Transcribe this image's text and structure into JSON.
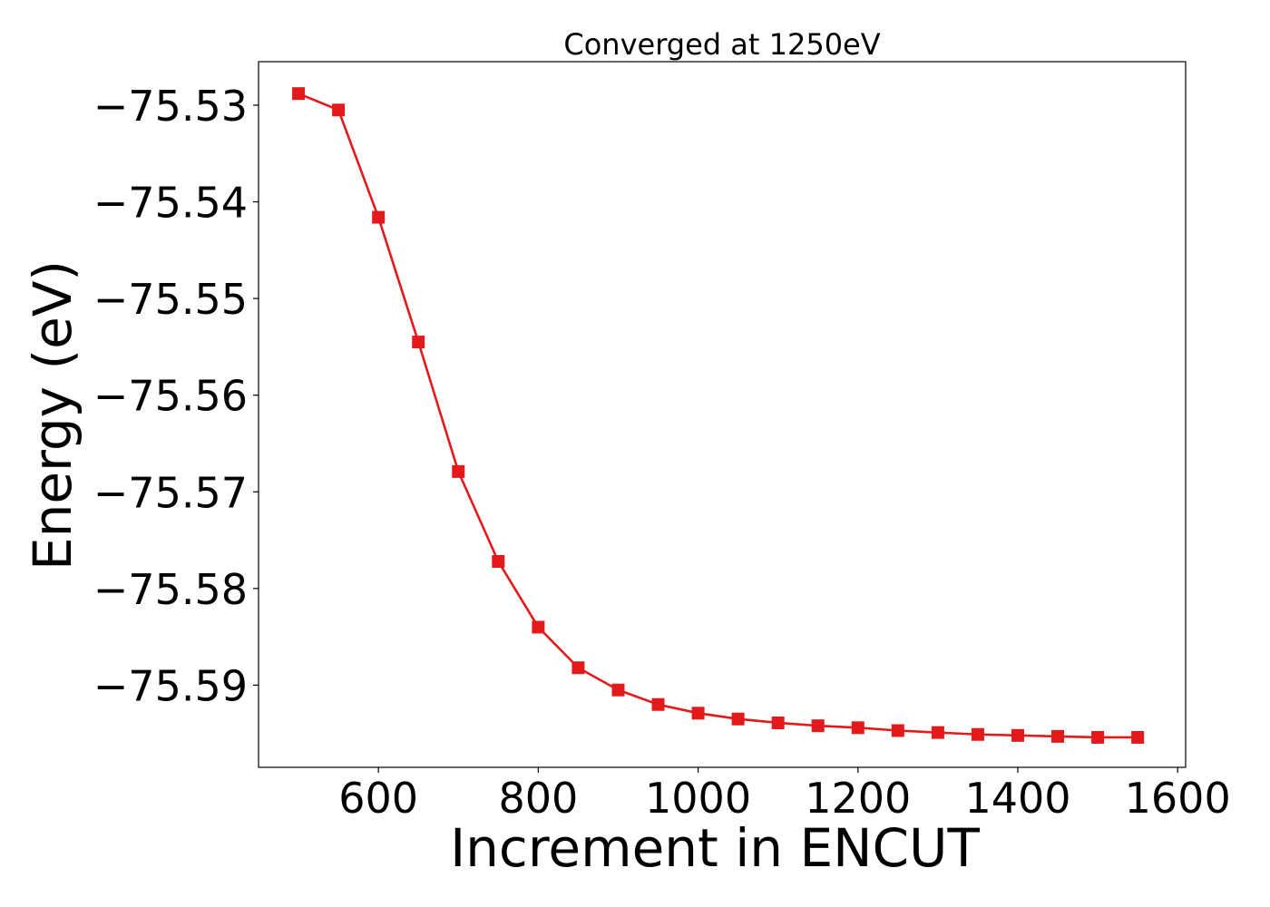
{
  "chart_data": {
    "type": "line",
    "title": "Converged at 1250eV",
    "xlabel": "Increment in ENCUT",
    "ylabel": "Energy (eV)",
    "xlim": [
      450,
      1610
    ],
    "ylim": [
      -75.5985,
      -75.5255
    ],
    "xticks": [
      600,
      800,
      1000,
      1200,
      1400,
      1600
    ],
    "xtick_labels": [
      "600",
      "800",
      "1000",
      "1200",
      "1400",
      "1600"
    ],
    "yticks": [
      -75.53,
      -75.54,
      -75.55,
      -75.56,
      -75.57,
      -75.58,
      -75.59
    ],
    "ytick_labels": [
      "−75.53",
      "−75.54",
      "−75.55",
      "−75.56",
      "−75.57",
      "−75.58",
      "−75.59"
    ],
    "grid": false,
    "series": [
      {
        "color": "#e31a1c",
        "marker": "square",
        "x": [
          500,
          550,
          600,
          650,
          700,
          750,
          800,
          850,
          900,
          950,
          1000,
          1050,
          1100,
          1150,
          1200,
          1250,
          1300,
          1350,
          1400,
          1450,
          1500,
          1550
        ],
        "y": [
          -75.5288,
          -75.5305,
          -75.5416,
          -75.5545,
          -75.5679,
          -75.5772,
          -75.584,
          -75.5882,
          -75.5905,
          -75.592,
          -75.5929,
          -75.5935,
          -75.5939,
          -75.5942,
          -75.5944,
          -75.5947,
          -75.5949,
          -75.5951,
          -75.5952,
          -75.5953,
          -75.5954,
          -75.5954
        ]
      }
    ]
  }
}
